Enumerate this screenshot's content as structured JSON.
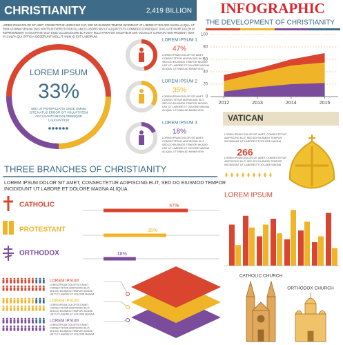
{
  "header": {
    "title": "CHRISTIANITY",
    "total": "2,419 BILLION",
    "intro_lines": [
      "LOREM IPSUM DOLOR SIT AMET, CONSECTETUR ADIPISCING ELIT, SED DO EIUSMOD TEMPOR INCIDIDUNT UT LABORE ET DOLORE MAGNA ALIQUA. UT",
      "ENIM AD MINIM VENIAM, QUIS NOSTRUD EXERCITATION ULLAMCO LABORIS NISI UT ALIQUIP EX EA COMMODO CONSEQUAT. DUIS AUTE IRURE DOLOR IN",
      "REPREHENDERIT IN VOLUPTATE VELIT ESSE CILLUM DOLORE EU FUGIAT NULLA PARIATUR. EXCEPTEUR SINT OCCAECAT CUPIDATAT NON PROIDENT, SUNT",
      "IN CULPA QUI OFFICIA DESERUNT MOLLIT ANIM ID EST LABORUM."
    ]
  },
  "big_donut": {
    "title": "LOREM IPSUM",
    "value": "33%",
    "lines": [
      "SED UT PERSPICIATIS UNDE OMNIS",
      "ISTE NATUS ERROR SIT VOLUPTATEM",
      "ACCUSANTIUM DOLOREMQUE",
      "LAUDANTIUM"
    ]
  },
  "small_text": [
    "LOREM IPSUM DOLOR SIT AMET,",
    "CONSECTETUR ADIPISCING ELIT,",
    "SED DO EIUSMOD TEMPOR INCIDID",
    "UNT UT LABORE ET DOLORE MAGNA",
    "ALIQUA. UT ENIM AD MINIM VENI"
  ],
  "infographic": {
    "title": "INFOGRAPHIC",
    "subtitle": "THE DEVELOPMENT OF CHRISTIANITY"
  },
  "vatican": {
    "title": "VATICAN",
    "number": "266",
    "lines": [
      "LOREM IPSUM DOLOR SIT AMET, CONSECTETUR",
      "ADIPISCING ELIT, SED DO EIUSMOD TEMPOR",
      "INCIDIDUNT UT LABORE ET DOLORE MAGNA"
    ]
  },
  "branches": {
    "title": "THREE BRANCHES OF CHRISTIANITY",
    "lines": [
      "LOREM IPSUM DOLOR SIT AMET, CONSECTETUR ADIPISCING ELIT, SED DO EIUSMOD TEMPOR",
      "INCIDIDUNT UT LABORE ET DOLORE MAGNA ALIQUA."
    ]
  },
  "people": {
    "labels": [
      "LOREM IPSUM",
      "LOREM IPSUM",
      "LOREM IPSUM"
    ]
  },
  "buildings": {
    "catholic": "CATHOLIC CHURCH",
    "orthodox": "ORTHODOX CHURCH"
  },
  "chart_data": [
    {
      "type": "area",
      "x": [
        2012,
        2013,
        2014,
        2015
      ],
      "xlim": [
        2011.6,
        2015.4
      ],
      "ylim": [
        0,
        100
      ],
      "yticks": [
        0,
        20,
        40,
        60,
        80,
        100
      ],
      "xticks": [
        2012,
        2013,
        2014,
        2015
      ],
      "grid": true,
      "series": [
        {
          "color": "#d9452f",
          "values": [
            35,
            45,
            60,
            70
          ]
        },
        {
          "color": "#f0b429",
          "values": [
            25,
            38,
            50,
            55
          ]
        },
        {
          "color": "#7b4c9b",
          "values": [
            8,
            15,
            20,
            22
          ]
        }
      ]
    },
    {
      "type": "hbar",
      "categories": [
        "CATHOLIC",
        "PROTESTANT",
        "ORTHODOX"
      ],
      "values": [
        47,
        35,
        18
      ],
      "value_labels": [
        "47%",
        "35%",
        "18%"
      ],
      "colors": [
        "#d9452f",
        "#f0b429",
        "#7b4c9b"
      ]
    },
    {
      "type": "donut",
      "categories": [
        "LOREM IPSUM 1",
        "LOREM IPSUM 2",
        "LOREM IPSUM 3"
      ],
      "values": [
        47,
        35,
        18
      ],
      "value_labels": [
        "47%",
        "35%",
        "18%"
      ],
      "colors": [
        "#d9452f",
        "#f0b429",
        "#7b4c9b"
      ]
    },
    {
      "type": "bar",
      "title": "LOREM IPSUM",
      "series": [
        {
          "color": "#d9452f",
          "values": [
            70,
            85,
            50,
            80,
            45,
            60,
            40,
            90
          ]
        },
        {
          "color": "#f0b429",
          "values": [
            35,
            65,
            70,
            55,
            95,
            75,
            50,
            30
          ]
        }
      ]
    }
  ]
}
